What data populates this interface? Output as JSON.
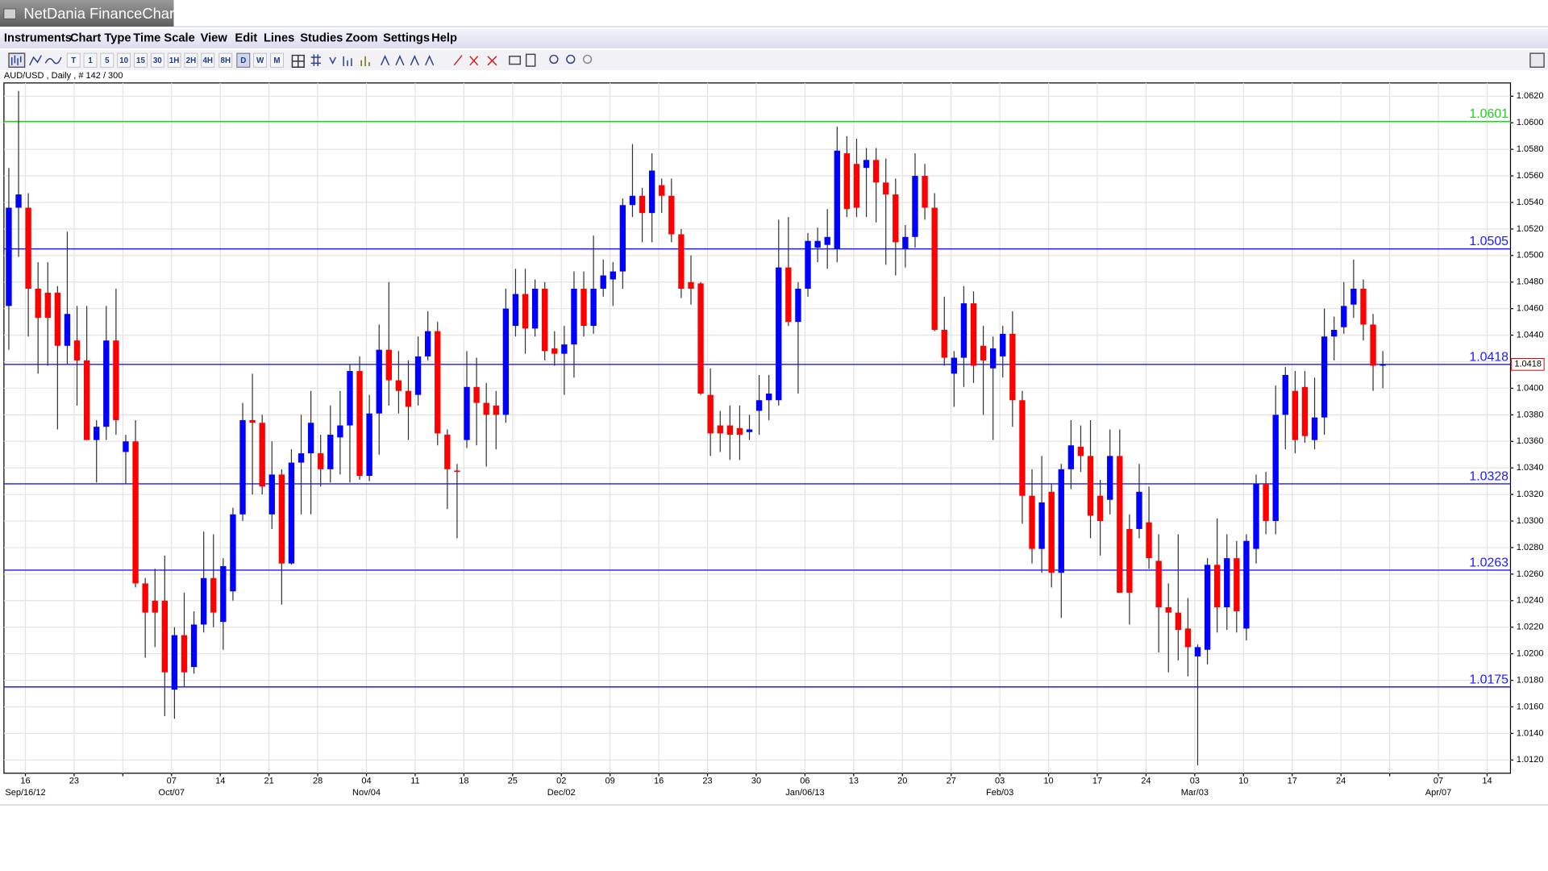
{
  "window_title": "NetDania FinanceChart",
  "menu": [
    "Instruments",
    "Chart Type",
    "Time Scale",
    "View",
    "Edit",
    "Lines",
    "Studies",
    "Zoom",
    "Settings",
    "Help"
  ],
  "toolbar": [
    "T",
    "1",
    "5",
    "10",
    "15",
    "30",
    "1H",
    "2H",
    "4H",
    "8H",
    "D",
    "W",
    "M"
  ],
  "chart_data": {
    "type": "candlestick",
    "title": "AUD/USD , Daily , # 142 / 300",
    "up_color": "#0000ff",
    "down_color": "#ff0000",
    "grid": true,
    "series": {
      "open": [
        1.0462,
        1.0536,
        1.0536,
        1.0475,
        1.0472,
        1.0472,
        1.0432,
        1.0436,
        1.0421,
        1.0361,
        1.0371,
        1.0436,
        1.0352,
        1.036,
        1.0253,
        1.024,
        1.024,
        1.0173,
        1.0214,
        1.019,
        1.0222,
        1.0257,
        1.0224,
        1.0247,
        1.0305,
        1.0376,
        1.0374,
        1.0305,
        1.0335,
        1.0268,
        1.0344,
        1.0351,
        1.0351,
        1.0339,
        1.0363,
        1.0372,
        1.0413,
        1.0334,
        1.0381,
        1.0429,
        1.0406,
        1.0398,
        1.0395,
        1.0424,
        1.0443,
        1.0365,
        1.0338,
        1.0361,
        1.0401,
        1.0389,
        1.0387,
        1.038,
        1.0447,
        1.0471,
        1.0445,
        1.0475,
        1.043,
        1.0426,
        1.0433,
        1.0475,
        1.0447,
        1.0475,
        1.0482,
        1.0488,
        1.0538,
        1.0545,
        1.0532,
        1.0553,
        1.0545,
        1.0516,
        1.048,
        1.0479,
        1.0395,
        1.0372,
        1.0372,
        1.037,
        1.0367,
        1.0383,
        1.0391,
        1.0391,
        1.0491,
        1.045,
        1.0475,
        1.0506,
        1.0508,
        1.0505,
        1.0577,
        1.0569,
        1.0566,
        1.0572,
        1.0555,
        1.0546,
        1.0505,
        1.0514,
        1.056,
        1.0536,
        1.0444,
        1.0411,
        1.0423,
        1.0464,
        1.0432,
        1.0415,
        1.0424,
        1.0441,
        1.0391,
        1.0319,
        1.0279,
        1.0322,
        1.0261,
        1.0339,
        1.0356,
        1.0349,
        1.0319,
        1.0316,
        1.0349,
        1.0294,
        1.0294,
        1.0299,
        1.027,
        1.0235,
        1.0231,
        1.0219,
        1.0198,
        1.0203,
        1.0267,
        1.0235,
        1.0272,
        1.0219,
        1.0279,
        1.0328,
        1.03,
        1.038,
        1.0398,
        1.0401,
        1.0361,
        1.0378,
        1.0439,
        1.0446,
        1.0463,
        1.0475,
        1.0448,
        1.0417
      ],
      "high": [
        1.0566,
        1.0624,
        1.0547,
        1.0495,
        1.0495,
        1.0477,
        1.0518,
        1.0462,
        1.0462,
        1.0376,
        1.0462,
        1.0475,
        1.0365,
        1.0376,
        1.0257,
        1.0264,
        1.0274,
        1.022,
        1.0246,
        1.0232,
        1.0292,
        1.029,
        1.0272,
        1.031,
        1.0389,
        1.0411,
        1.038,
        1.036,
        1.0339,
        1.0354,
        1.038,
        1.0398,
        1.0365,
        1.0387,
        1.0398,
        1.0418,
        1.0424,
        1.0395,
        1.0448,
        1.048,
        1.0428,
        1.0421,
        1.0439,
        1.0458,
        1.045,
        1.0369,
        1.0343,
        1.0428,
        1.0423,
        1.0404,
        1.0398,
        1.0475,
        1.049,
        1.049,
        1.0482,
        1.048,
        1.0443,
        1.0447,
        1.0488,
        1.0488,
        1.0515,
        1.0497,
        1.0495,
        1.0543,
        1.0584,
        1.0551,
        1.0577,
        1.0558,
        1.0558,
        1.052,
        1.05,
        1.048,
        1.0415,
        1.0383,
        1.0387,
        1.0387,
        1.038,
        1.041,
        1.041,
        1.0527,
        1.0529,
        1.048,
        1.0517,
        1.0521,
        1.0535,
        1.0597,
        1.059,
        1.0588,
        1.0581,
        1.0581,
        1.0573,
        1.0558,
        1.0523,
        1.0577,
        1.0569,
        1.0547,
        1.0469,
        1.0428,
        1.0477,
        1.0473,
        1.0447,
        1.0439,
        1.0447,
        1.0458,
        1.0398,
        1.0339,
        1.0349,
        1.0328,
        1.0343,
        1.0376,
        1.0372,
        1.0376,
        1.0331,
        1.0369,
        1.0369,
        1.0305,
        1.0343,
        1.0326,
        1.029,
        1.0253,
        1.029,
        1.0242,
        1.0207,
        1.0272,
        1.0302,
        1.029,
        1.0285,
        1.029,
        1.0335,
        1.0337,
        1.0402,
        1.0416,
        1.0413,
        1.0413,
        1.0408,
        1.046,
        1.0454,
        1.048,
        1.0497,
        1.0482,
        1.0456,
        1.0428
      ],
      "low": [
        1.0429,
        1.0499,
        1.0439,
        1.0411,
        1.0417,
        1.0369,
        1.0418,
        1.0387,
        1.0361,
        1.0329,
        1.0361,
        1.0365,
        1.0328,
        1.025,
        1.0197,
        1.0205,
        1.0153,
        1.0151,
        1.0175,
        1.0185,
        1.0216,
        1.022,
        1.0203,
        1.024,
        1.03,
        1.032,
        1.032,
        1.0294,
        1.0237,
        1.0267,
        1.0305,
        1.0305,
        1.0326,
        1.0329,
        1.0335,
        1.0329,
        1.0331,
        1.033,
        1.035,
        1.0387,
        1.0381,
        1.0361,
        1.0387,
        1.0421,
        1.0357,
        1.0309,
        1.0287,
        1.0355,
        1.0357,
        1.0341,
        1.0354,
        1.0374,
        1.0439,
        1.0426,
        1.0439,
        1.0421,
        1.0417,
        1.0395,
        1.0408,
        1.0439,
        1.0441,
        1.0469,
        1.0462,
        1.0475,
        1.0529,
        1.051,
        1.051,
        1.0532,
        1.051,
        1.0468,
        1.0463,
        1.0395,
        1.0349,
        1.0352,
        1.0346,
        1.0346,
        1.0361,
        1.0365,
        1.0376,
        1.0387,
        1.0447,
        1.0396,
        1.0469,
        1.0495,
        1.049,
        1.0495,
        1.0529,
        1.0529,
        1.0529,
        1.0525,
        1.0493,
        1.0485,
        1.0491,
        1.0506,
        1.0527,
        1.0443,
        1.0417,
        1.0386,
        1.0401,
        1.0404,
        1.038,
        1.0361,
        1.0408,
        1.0371,
        1.0298,
        1.0268,
        1.0261,
        1.025,
        1.0227,
        1.0324,
        1.0337,
        1.0287,
        1.0274,
        1.0305,
        1.0246,
        1.0222,
        1.0287,
        1.0264,
        1.0201,
        1.0186,
        1.0195,
        1.0183,
        1.0116,
        1.0192,
        1.0216,
        1.0218,
        1.0216,
        1.021,
        1.0268,
        1.029,
        1.029,
        1.0354,
        1.0351,
        1.0359,
        1.0354,
        1.0365,
        1.0421,
        1.0441,
        1.0453,
        1.0436,
        1.0398,
        1.04
      ],
      "close": [
        1.0536,
        1.0546,
        1.0475,
        1.0453,
        1.0453,
        1.0432,
        1.0456,
        1.0421,
        1.0361,
        1.0371,
        1.0436,
        1.0376,
        1.036,
        1.0253,
        1.0231,
        1.0231,
        1.0186,
        1.0214,
        1.0186,
        1.0222,
        1.0257,
        1.0231,
        1.0266,
        1.0305,
        1.0376,
        1.0374,
        1.0326,
        1.0335,
        1.0268,
        1.0344,
        1.0351,
        1.0374,
        1.0339,
        1.0365,
        1.0372,
        1.0413,
        1.0334,
        1.0381,
        1.0429,
        1.0406,
        1.0398,
        1.0386,
        1.0424,
        1.0443,
        1.0366,
        1.0339,
        1.0337,
        1.0401,
        1.0389,
        1.038,
        1.038,
        1.046,
        1.0471,
        1.0445,
        1.0475,
        1.0428,
        1.0426,
        1.0433,
        1.0475,
        1.0447,
        1.0475,
        1.0485,
        1.0488,
        1.0538,
        1.0545,
        1.0532,
        1.0564,
        1.0545,
        1.0516,
        1.0475,
        1.0475,
        1.0396,
        1.0366,
        1.0366,
        1.0365,
        1.0365,
        1.0369,
        1.0391,
        1.0396,
        1.0491,
        1.045,
        1.0475,
        1.0511,
        1.0511,
        1.0514,
        1.0579,
        1.0535,
        1.0536,
        1.0572,
        1.0555,
        1.0546,
        1.051,
        1.0514,
        1.056,
        1.0536,
        1.0444,
        1.0423,
        1.0423,
        1.0464,
        1.0417,
        1.0421,
        1.043,
        1.0441,
        1.0391,
        1.0319,
        1.0279,
        1.0314,
        1.0261,
        1.0339,
        1.0357,
        1.0349,
        1.0304,
        1.03,
        1.0349,
        1.0246,
        1.0246,
        1.0322,
        1.0272,
        1.0235,
        1.0231,
        1.0218,
        1.0205,
        1.0205,
        1.0267,
        1.0235,
        1.0272,
        1.0232,
        1.0285,
        1.0328,
        1.03,
        1.038,
        1.041,
        1.0361,
        1.0364,
        1.0378,
        1.0439,
        1.0444,
        1.0462,
        1.0475,
        1.0448,
        1.0417,
        1.0418
      ]
    },
    "xlim": [
      -0.5,
      154.1
    ],
    "xticks": [
      {
        "value": 1.7,
        "label": "16"
      },
      {
        "value": 6.7,
        "label": "23"
      },
      {
        "value": 11.7,
        "label": null
      },
      {
        "value": 16.7,
        "label": "07"
      },
      {
        "value": 21.7,
        "label": "14"
      },
      {
        "value": 26.7,
        "label": "21"
      },
      {
        "value": 31.7,
        "label": "28"
      },
      {
        "value": 36.7,
        "label": "04"
      },
      {
        "value": 41.7,
        "label": "11"
      },
      {
        "value": 46.7,
        "label": "18"
      },
      {
        "value": 51.7,
        "label": "25"
      },
      {
        "value": 56.7,
        "label": "02"
      },
      {
        "value": 61.7,
        "label": "09"
      },
      {
        "value": 66.7,
        "label": "16"
      },
      {
        "value": 71.7,
        "label": "23"
      },
      {
        "value": 76.7,
        "label": "30"
      },
      {
        "value": 81.7,
        "label": "06"
      },
      {
        "value": 86.7,
        "label": "13"
      },
      {
        "value": 91.7,
        "label": "20"
      },
      {
        "value": 96.7,
        "label": "27"
      },
      {
        "value": 101.7,
        "label": "03"
      },
      {
        "value": 106.7,
        "label": "10"
      },
      {
        "value": 111.7,
        "label": "17"
      },
      {
        "value": 116.7,
        "label": "24"
      },
      {
        "value": 121.7,
        "label": "03"
      },
      {
        "value": 126.7,
        "label": "10"
      },
      {
        "value": 131.7,
        "label": "17"
      },
      {
        "value": 136.7,
        "label": "24"
      },
      {
        "value": 141.7,
        "label": null
      },
      {
        "value": 146.7,
        "label": "07"
      },
      {
        "value": 151.7,
        "label": "14"
      }
    ],
    "xticks_month": [
      {
        "value": 1.7,
        "label": "Sep/16/12"
      },
      {
        "value": 16.7,
        "label": "Oct/07"
      },
      {
        "value": 36.7,
        "label": "Nov/04"
      },
      {
        "value": 56.7,
        "label": "Dec/02"
      },
      {
        "value": 81.7,
        "label": "Jan/06/13"
      },
      {
        "value": 101.7,
        "label": "Feb/03"
      },
      {
        "value": 121.7,
        "label": "Mar/03"
      },
      {
        "value": 146.7,
        "label": "Apr/07"
      }
    ],
    "ylim": [
      1.011,
      1.063
    ],
    "yticks": [
      {
        "value": 1.012,
        "label": "1.0120"
      },
      {
        "value": 1.014,
        "label": "1.0140"
      },
      {
        "value": 1.016,
        "label": "1.0160"
      },
      {
        "value": 1.018,
        "label": "1.0180"
      },
      {
        "value": 1.02,
        "label": "1.0200"
      },
      {
        "value": 1.022,
        "label": "1.0220"
      },
      {
        "value": 1.024,
        "label": "1.0240"
      },
      {
        "value": 1.026,
        "label": "1.0260"
      },
      {
        "value": 1.028,
        "label": "1.0280"
      },
      {
        "value": 1.03,
        "label": "1.0300"
      },
      {
        "value": 1.032,
        "label": "1.0320"
      },
      {
        "value": 1.034,
        "label": "1.0340"
      },
      {
        "value": 1.036,
        "label": "1.0360"
      },
      {
        "value": 1.038,
        "label": "1.0380"
      },
      {
        "value": 1.04,
        "label": "1.0400"
      },
      {
        "value": 1.042,
        "label": "1.0420"
      },
      {
        "value": 1.044,
        "label": "1.0440"
      },
      {
        "value": 1.046,
        "label": "1.0460"
      },
      {
        "value": 1.048,
        "label": "1.0480"
      },
      {
        "value": 1.05,
        "label": "1.0500"
      },
      {
        "value": 1.052,
        "label": "1.0520"
      },
      {
        "value": 1.054,
        "label": "1.0540"
      },
      {
        "value": 1.056,
        "label": "1.0560"
      },
      {
        "value": 1.058,
        "label": "1.0580"
      },
      {
        "value": 1.06,
        "label": "1.0600"
      },
      {
        "value": 1.062,
        "label": "1.0620"
      }
    ],
    "levels": [
      {
        "value": 1.0601,
        "color": "#22cc22"
      },
      {
        "value": 1.0505,
        "color": "#1a1aff"
      },
      {
        "value": 1.0418,
        "color": "#1a1aff"
      },
      {
        "value": 1.0328,
        "color": "#1a1aff"
      },
      {
        "value": 1.0263,
        "color": "#1a1aff"
      },
      {
        "value": 1.0175,
        "color": "#1a1aff"
      }
    ],
    "last_price": 1.0418
  }
}
